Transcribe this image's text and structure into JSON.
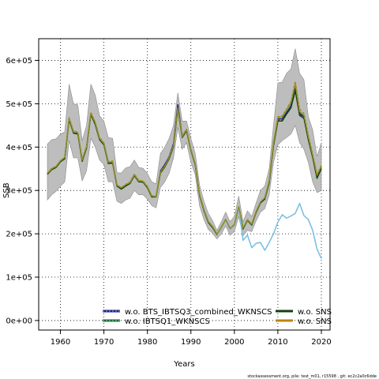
{
  "chart_data": {
    "type": "line",
    "xlabel": "Years",
    "ylabel": "SSB",
    "xlim": [
      1955,
      2022
    ],
    "ylim": [
      -22000,
      650000
    ],
    "x_ticks": [
      1960,
      1970,
      1980,
      1990,
      2000,
      2010,
      2020
    ],
    "x_tick_labels": [
      "1960",
      "1970",
      "1980",
      "1990",
      "2000",
      "2010",
      "2020"
    ],
    "y_ticks": [
      0,
      100000,
      200000,
      300000,
      400000,
      500000,
      600000
    ],
    "y_tick_labels": [
      "0e+00",
      "1e+05",
      "2e+05",
      "3e+05",
      "4e+05",
      "5e+05",
      "6e+05"
    ],
    "grid": true,
    "legend_position": "bottom",
    "footer": "stockassessment.org, pile: test_m01, r15598 , git: ec2c2a0c6dde",
    "x": [
      1957,
      1958,
      1959,
      1960,
      1961,
      1962,
      1963,
      1964,
      1965,
      1966,
      1967,
      1968,
      1969,
      1970,
      1971,
      1972,
      1973,
      1974,
      1975,
      1976,
      1977,
      1978,
      1979,
      1980,
      1981,
      1982,
      1983,
      1984,
      1985,
      1986,
      1987,
      1988,
      1989,
      1990,
      1991,
      1992,
      1993,
      1994,
      1995,
      1996,
      1997,
      1998,
      1999,
      2000,
      2001,
      2002,
      2003,
      2004,
      2005,
      2006,
      2007,
      2008,
      2009,
      2010,
      2011,
      2012,
      2013,
      2014,
      2015,
      2016,
      2017,
      2018,
      2019,
      2020
    ],
    "band": {
      "upper": [
        407000,
        417000,
        419000,
        430000,
        435000,
        545000,
        500000,
        497000,
        415000,
        450000,
        545000,
        520000,
        472000,
        460000,
        422000,
        420000,
        341000,
        340000,
        352000,
        355000,
        370000,
        353000,
        351000,
        339000,
        320000,
        315000,
        385000,
        400000,
        420000,
        450000,
        525000,
        460000,
        460000,
        420000,
        385000,
        312000,
        275000,
        247000,
        230000,
        208000,
        228000,
        250000,
        228000,
        240000,
        287000,
        228000,
        253000,
        240000,
        271000,
        300000,
        310000,
        350000,
        450000,
        548000,
        550000,
        570000,
        580000,
        627000,
        570000,
        555000,
        470000,
        440000,
        378000,
        410000
      ],
      "lower": [
        278000,
        290000,
        298000,
        310000,
        320000,
        415000,
        375000,
        375000,
        322000,
        345000,
        420000,
        400000,
        370000,
        360000,
        320000,
        320000,
        275000,
        270000,
        278000,
        282000,
        300000,
        290000,
        290000,
        280000,
        265000,
        260000,
        307000,
        320000,
        340000,
        375000,
        445000,
        395000,
        410000,
        365000,
        336000,
        264000,
        233000,
        210000,
        201000,
        188000,
        200000,
        218000,
        197000,
        205000,
        240000,
        195000,
        208000,
        205000,
        230000,
        250000,
        258000,
        290000,
        365000,
        405000,
        415000,
        422000,
        430000,
        450000,
        410000,
        395000,
        365000,
        320000,
        295000,
        300000
      ]
    },
    "series": [
      {
        "name": "w.o. BTS_IBTSQ3_combined_WKNSCS",
        "color": "#1a1a80",
        "dashed": false,
        "values": [
          338000,
          350000,
          355000,
          368000,
          375000,
          465000,
          435000,
          433000,
          370000,
          400000,
          478000,
          455000,
          420000,
          408000,
          365000,
          365000,
          312000,
          305000,
          312000,
          318000,
          336000,
          322000,
          320000,
          308000,
          286000,
          286000,
          345000,
          360000,
          378000,
          408000,
          498000,
          425000,
          440000,
          394000,
          360000,
          290000,
          255000,
          228000,
          216000,
          199000,
          215000,
          233000,
          212000,
          221000,
          262000,
          212000,
          232000,
          222000,
          251000,
          273000,
          282000,
          320000,
          408000,
          465000,
          465000,
          480000,
          495000,
          535000,
          478000,
          470000,
          421000,
          380000,
          332000,
          355000
        ]
      },
      {
        "name": "w.o. IBTSQ1_WKNSCS",
        "color": "#1f6b1f",
        "dashed": true,
        "values": [
          338000,
          349000,
          354000,
          367000,
          375000,
          465000,
          434000,
          432000,
          369000,
          399000,
          477000,
          455000,
          419000,
          407000,
          364000,
          365000,
          311000,
          305000,
          312000,
          317000,
          335000,
          321000,
          320000,
          307000,
          286000,
          286000,
          341000,
          355000,
          374000,
          402000,
          488000,
          423000,
          438000,
          393000,
          359000,
          289000,
          254000,
          227000,
          215000,
          198000,
          214000,
          232000,
          211000,
          220000,
          261000,
          212000,
          231000,
          221000,
          250000,
          272000,
          281000,
          319000,
          405000,
          462000,
          462000,
          477000,
          492000,
          531000,
          475000,
          468000,
          419000,
          378000,
          330000,
          352000
        ]
      },
      {
        "name": "w.o. SNS",
        "color": "#104010",
        "dashed": false,
        "values": [
          337000,
          348000,
          353000,
          366000,
          373000,
          463000,
          432000,
          430000,
          367000,
          397000,
          475000,
          452000,
          417000,
          405000,
          362000,
          363000,
          310000,
          303000,
          310000,
          316000,
          334000,
          320000,
          319000,
          306000,
          285000,
          285000,
          340000,
          354000,
          373000,
          401000,
          487000,
          422000,
          437000,
          392000,
          358000,
          288000,
          253000,
          226000,
          214000,
          198000,
          213000,
          231000,
          211000,
          219000,
          260000,
          211000,
          231000,
          220000,
          249000,
          271000,
          280000,
          317000,
          403000,
          460000,
          460000,
          476000,
          490000,
          530000,
          473000,
          466000,
          417000,
          376000,
          328000,
          350000
        ]
      },
      {
        "name": "w.o. SNS",
        "color": "#b8860b",
        "dashed": true,
        "values": [
          340000,
          351000,
          356000,
          369000,
          377000,
          468000,
          437000,
          435000,
          372000,
          402000,
          480000,
          458000,
          422000,
          410000,
          367000,
          368000,
          313000,
          307000,
          314000,
          320000,
          338000,
          324000,
          322000,
          310000,
          288000,
          287000,
          343000,
          357000,
          377000,
          405000,
          490000,
          426000,
          441000,
          396000,
          361000,
          291000,
          256000,
          229000,
          217000,
          200000,
          216000,
          234000,
          213000,
          222000,
          263000,
          214000,
          233000,
          223000,
          252000,
          274000,
          284000,
          322000,
          410000,
          470000,
          472000,
          488000,
          505000,
          552000,
          488000,
          478000,
          428000,
          385000,
          338000,
          358000
        ]
      },
      {
        "name": "",
        "color": "#7cc0e4",
        "dashed": false,
        "x": [
          1996,
          1997,
          1998,
          1999,
          2000,
          2001,
          2002,
          2003,
          2004,
          2005,
          2006,
          2007,
          2008,
          2009,
          2010,
          2011,
          2012,
          2013,
          2014,
          2015,
          2016,
          2017,
          2018,
          2019,
          2020
        ],
        "values": [
          198000,
          213000,
          231000,
          211000,
          219000,
          260000,
          185000,
          197000,
          168000,
          178000,
          180000,
          162000,
          180000,
          200000,
          227000,
          244000,
          236000,
          241000,
          247000,
          270000,
          242000,
          233000,
          208000,
          165000,
          143000
        ]
      },
      {
        "name": "",
        "color": "#8f8f2a",
        "dashed": false,
        "values": [
          339000,
          350000,
          355000,
          368000,
          376000,
          466000,
          435000,
          433000,
          370000,
          400000,
          478000,
          456000,
          420000,
          408000,
          365000,
          366000,
          312000,
          306000,
          313000,
          318000,
          336000,
          322000,
          321000,
          308000,
          287000,
          286000,
          342000,
          356000,
          376000,
          404000,
          489000,
          424000,
          439000,
          394000,
          360000,
          290000,
          255000,
          228000,
          216000,
          199000,
          215000,
          233000,
          212000,
          221000,
          262000,
          213000,
          232000,
          222000,
          251000,
          273000,
          283000,
          321000,
          408000,
          468000,
          470000,
          486000,
          502000,
          545000,
          482000,
          474000,
          424000,
          381000,
          335000,
          356000
        ]
      }
    ],
    "legend": [
      {
        "label": "w.o. BTS_IBTSQ3_combined_WKNSCS",
        "color": "#1a1a80",
        "dash": "#7cc0e4"
      },
      {
        "label": "w.o. IBTSQ1_WKNSCS",
        "color": "#1f6b1f",
        "dash": "#7cc0e4"
      },
      {
        "label": "w.o. SNS",
        "color": "#104010",
        "dash": "#104010"
      },
      {
        "label": "w.o. SNS",
        "color": "#b8860b",
        "dash": "#b8860b"
      }
    ]
  }
}
